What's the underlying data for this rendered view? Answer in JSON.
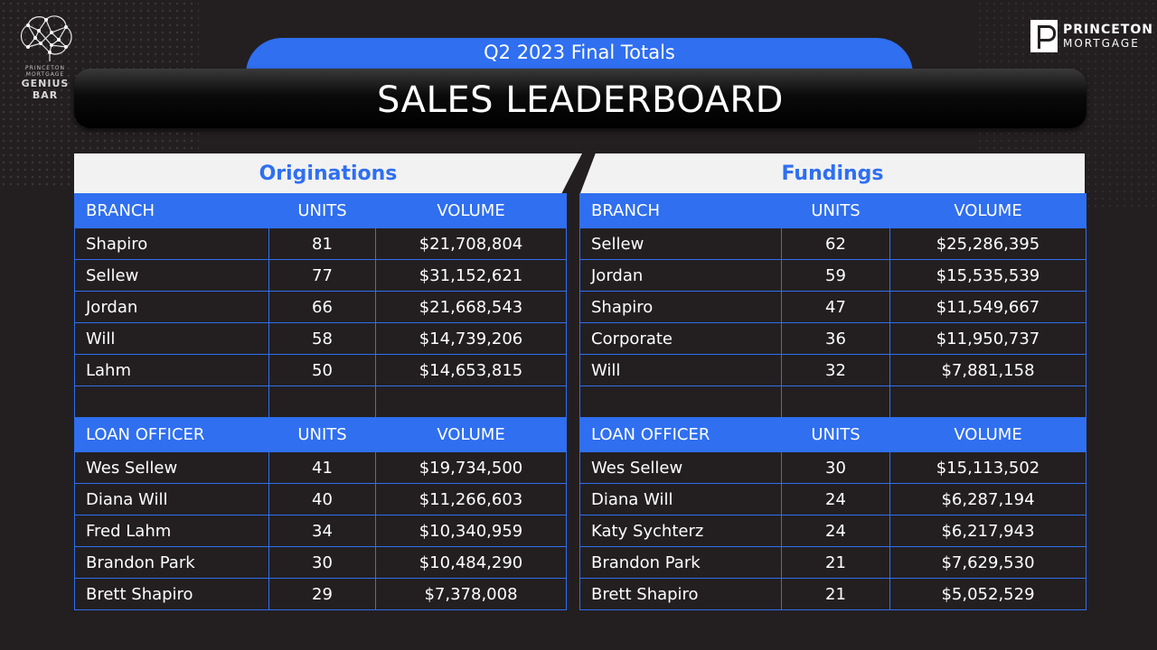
{
  "logos": {
    "genius_bar_small": "PRINCETON MORTGAGE",
    "genius_bar_big": "GENIUS BAR",
    "princeton_line1": "PRINCETON",
    "princeton_line2": "MORTGAGE"
  },
  "subtitle": "Q2 2023 Final Totals",
  "title": "SALES LEADERBOARD",
  "colors": {
    "accent": "#2f6ff0",
    "background": "#231f20"
  },
  "originations": {
    "heading": "Originations",
    "branch_header": [
      "BRANCH",
      "UNITS",
      "VOLUME"
    ],
    "branches": [
      {
        "name": "Shapiro",
        "units": "81",
        "volume": "$21,708,804"
      },
      {
        "name": "Sellew",
        "units": "77",
        "volume": "$31,152,621"
      },
      {
        "name": "Jordan",
        "units": "66",
        "volume": "$21,668,543"
      },
      {
        "name": "Will",
        "units": "58",
        "volume": "$14,739,206"
      },
      {
        "name": "Lahm",
        "units": "50",
        "volume": "$14,653,815"
      }
    ],
    "officer_header": [
      "LOAN OFFICER",
      "UNITS",
      "VOLUME"
    ],
    "officers": [
      {
        "name": "Wes Sellew",
        "units": "41",
        "volume": "$19,734,500"
      },
      {
        "name": "Diana Will",
        "units": "40",
        "volume": "$11,266,603"
      },
      {
        "name": "Fred Lahm",
        "units": "34",
        "volume": "$10,340,959"
      },
      {
        "name": "Brandon Park",
        "units": "30",
        "volume": "$10,484,290"
      },
      {
        "name": "Brett Shapiro",
        "units": "29",
        "volume": "$7,378,008"
      }
    ]
  },
  "fundings": {
    "heading": "Fundings",
    "branch_header": [
      "BRANCH",
      "UNITS",
      "VOLUME"
    ],
    "branches": [
      {
        "name": "Sellew",
        "units": "62",
        "volume": "$25,286,395"
      },
      {
        "name": "Jordan",
        "units": "59",
        "volume": "$15,535,539"
      },
      {
        "name": "Shapiro",
        "units": "47",
        "volume": "$11,549,667"
      },
      {
        "name": "Corporate",
        "units": "36",
        "volume": "$11,950,737"
      },
      {
        "name": "Will",
        "units": "32",
        "volume": "$7,881,158"
      }
    ],
    "officer_header": [
      "LOAN OFFICER",
      "UNITS",
      "VOLUME"
    ],
    "officers": [
      {
        "name": "Wes Sellew",
        "units": "30",
        "volume": "$15,113,502"
      },
      {
        "name": "Diana Will",
        "units": "24",
        "volume": "$6,287,194"
      },
      {
        "name": "Katy Sychterz",
        "units": "24",
        "volume": "$6,217,943"
      },
      {
        "name": "Brandon Park",
        "units": "21",
        "volume": "$7,629,530"
      },
      {
        "name": "Brett Shapiro",
        "units": "21",
        "volume": "$5,052,529"
      }
    ]
  }
}
